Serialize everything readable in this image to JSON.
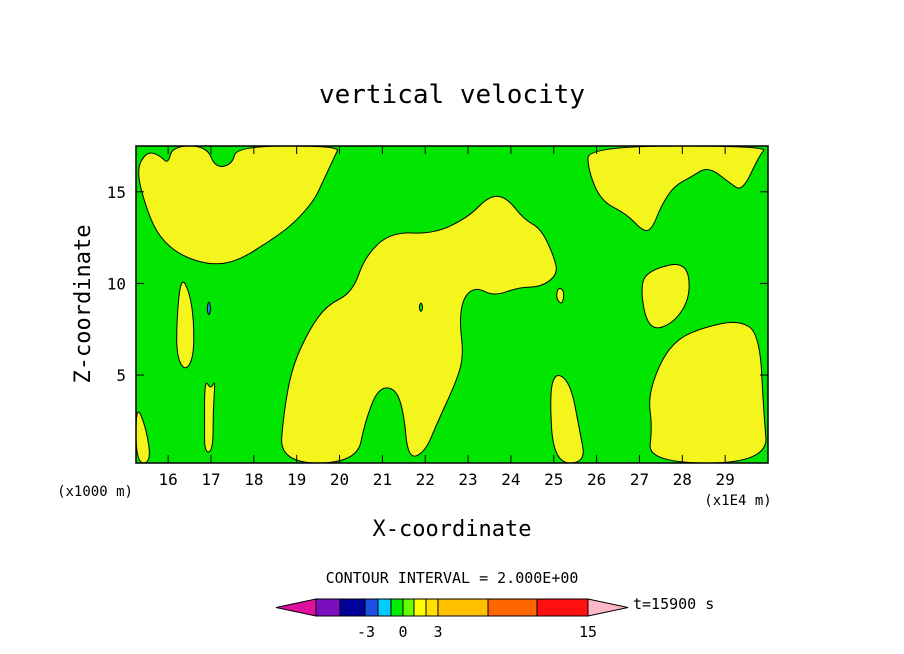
{
  "chart_data": {
    "type": "heatmap",
    "title": "vertical velocity",
    "xlabel": "X-coordinate",
    "ylabel": "Z-coordinate",
    "x_unit_left": "(x1000 m)",
    "x_unit_right": "(x1E4 m)",
    "xlim": [
      15.25,
      30.0
    ],
    "ylim": [
      0.2,
      17.5
    ],
    "x_ticks": [
      16,
      17,
      18,
      19,
      20,
      21,
      22,
      23,
      24,
      25,
      26,
      27,
      28,
      29
    ],
    "y_ticks": [
      5,
      10,
      15
    ],
    "contour_interval_label": "CONTOUR INTERVAL = 2.000E+00",
    "time_label": "t=15900 s",
    "colorbar": {
      "tick_labels": [
        {
          "label": "-3",
          "value": -3
        },
        {
          "label": "0",
          "value": 0
        },
        {
          "label": "3",
          "value": 3
        },
        {
          "label": "15",
          "value": 15
        }
      ],
      "colors": [
        "#e0109f",
        "#7a0fbf",
        "#00009a",
        "#1a4fe6",
        "#00ccff",
        "#00ee00",
        "#66ff00",
        "#ffff00",
        "#ffe000",
        "#ffc000",
        "#ff6600",
        "#ff1010",
        "#ff7070",
        "#ffb8c8"
      ]
    },
    "fill_colors": {
      "positive": "#f5f51e",
      "near_zero": "#00e600",
      "negative": "#1e8cff"
    },
    "regions": [
      {
        "fill": "positive",
        "points": [
          [
            15.25,
            3.5
          ],
          [
            15.5,
            2.0
          ],
          [
            15.6,
            0.2
          ],
          [
            15.25,
            0.2
          ]
        ]
      },
      {
        "fill": "positive",
        "points": [
          [
            15.25,
            16.2
          ],
          [
            15.5,
            14.0
          ],
          [
            15.8,
            12.5
          ],
          [
            16.3,
            11.5
          ],
          [
            17.0,
            11.0
          ],
          [
            17.6,
            11.2
          ],
          [
            18.3,
            12.2
          ],
          [
            18.9,
            13.2
          ],
          [
            19.4,
            14.5
          ],
          [
            19.6,
            15.5
          ],
          [
            19.9,
            17.0
          ],
          [
            20.0,
            17.5
          ],
          [
            17.6,
            17.5
          ],
          [
            17.5,
            16.5
          ],
          [
            17.1,
            16.3
          ],
          [
            16.9,
            17.5
          ],
          [
            16.1,
            17.5
          ],
          [
            16.0,
            16.5
          ],
          [
            15.8,
            17.0
          ],
          [
            15.5,
            17.2
          ]
        ]
      },
      {
        "fill": "positive",
        "points": [
          [
            16.2,
            8.0
          ],
          [
            16.3,
            10.4
          ],
          [
            16.5,
            9.5
          ],
          [
            16.6,
            8.0
          ],
          [
            16.6,
            6.0
          ],
          [
            16.4,
            5.2
          ],
          [
            16.2,
            6.0
          ]
        ]
      },
      {
        "fill": "positive",
        "points": [
          [
            16.85,
            2.0
          ],
          [
            16.85,
            4.8
          ],
          [
            17.0,
            4.2
          ],
          [
            17.1,
            4.8
          ],
          [
            17.05,
            3.0
          ],
          [
            17.05,
            1.2
          ],
          [
            16.95,
            0.7
          ],
          [
            16.85,
            1.0
          ]
        ]
      },
      {
        "fill": "positive",
        "points": [
          [
            18.6,
            0.2
          ],
          [
            18.7,
            3.0
          ],
          [
            18.9,
            5.5
          ],
          [
            19.3,
            7.5
          ],
          [
            19.7,
            8.8
          ],
          [
            20.3,
            9.5
          ],
          [
            20.6,
            11.5
          ],
          [
            21.2,
            12.8
          ],
          [
            22.2,
            12.7
          ],
          [
            23.0,
            13.6
          ],
          [
            23.5,
            14.8
          ],
          [
            23.9,
            14.7
          ],
          [
            24.3,
            13.5
          ],
          [
            24.7,
            13.0
          ],
          [
            25.0,
            11.5
          ],
          [
            25.1,
            10.5
          ],
          [
            24.7,
            9.8
          ],
          [
            24.2,
            9.8
          ],
          [
            23.6,
            9.3
          ],
          [
            23.2,
            9.8
          ],
          [
            22.9,
            9.3
          ],
          [
            22.8,
            8.0
          ],
          [
            22.9,
            6.0
          ],
          [
            22.7,
            4.5
          ],
          [
            22.3,
            2.5
          ],
          [
            22.0,
            0.8
          ],
          [
            21.6,
            0.4
          ],
          [
            21.5,
            3.0
          ],
          [
            21.3,
            4.3
          ],
          [
            20.9,
            4.3
          ],
          [
            20.6,
            2.5
          ],
          [
            20.4,
            0.2
          ]
        ]
      },
      {
        "fill": "positive",
        "points": [
          [
            25.05,
            9.2
          ],
          [
            25.1,
            9.8
          ],
          [
            25.25,
            9.6
          ],
          [
            25.2,
            8.8
          ]
        ]
      },
      {
        "fill": "positive",
        "points": [
          [
            25.0,
            0.2
          ],
          [
            24.9,
            4.0
          ],
          [
            25.05,
            5.2
          ],
          [
            25.4,
            4.5
          ],
          [
            25.6,
            2.0
          ],
          [
            25.75,
            0.2
          ]
        ]
      },
      {
        "fill": "positive",
        "points": [
          [
            25.8,
            17.5
          ],
          [
            25.8,
            16.2
          ],
          [
            26.1,
            14.5
          ],
          [
            26.7,
            13.8
          ],
          [
            27.1,
            12.8
          ],
          [
            27.3,
            13.0
          ],
          [
            27.5,
            14.2
          ],
          [
            27.8,
            15.3
          ],
          [
            28.2,
            15.8
          ],
          [
            28.6,
            16.4
          ],
          [
            29.1,
            15.5
          ],
          [
            29.4,
            15.0
          ],
          [
            29.8,
            17.0
          ],
          [
            30.0,
            17.5
          ]
        ]
      },
      {
        "fill": "positive",
        "points": [
          [
            27.2,
            0.2
          ],
          [
            27.3,
            2.2
          ],
          [
            27.2,
            3.8
          ],
          [
            27.5,
            5.8
          ],
          [
            27.9,
            7.0
          ],
          [
            28.5,
            7.6
          ],
          [
            29.3,
            8.0
          ],
          [
            29.8,
            7.3
          ],
          [
            29.9,
            3.0
          ],
          [
            30.0,
            0.2
          ]
        ]
      },
      {
        "fill": "positive",
        "points": [
          [
            27.0,
            10.0
          ],
          [
            27.3,
            10.8
          ],
          [
            28.1,
            11.2
          ],
          [
            28.2,
            9.3
          ],
          [
            27.8,
            7.8
          ],
          [
            27.2,
            7.4
          ]
        ]
      },
      {
        "fill": "negative",
        "points": [
          [
            16.9,
            8.6
          ],
          [
            16.95,
            9.1
          ],
          [
            17.0,
            8.6
          ],
          [
            16.95,
            8.2
          ]
        ]
      },
      {
        "fill": "near_zero",
        "points": [
          [
            21.85,
            8.7
          ],
          [
            21.9,
            9.0
          ],
          [
            21.95,
            8.7
          ],
          [
            21.9,
            8.4
          ]
        ]
      }
    ]
  }
}
